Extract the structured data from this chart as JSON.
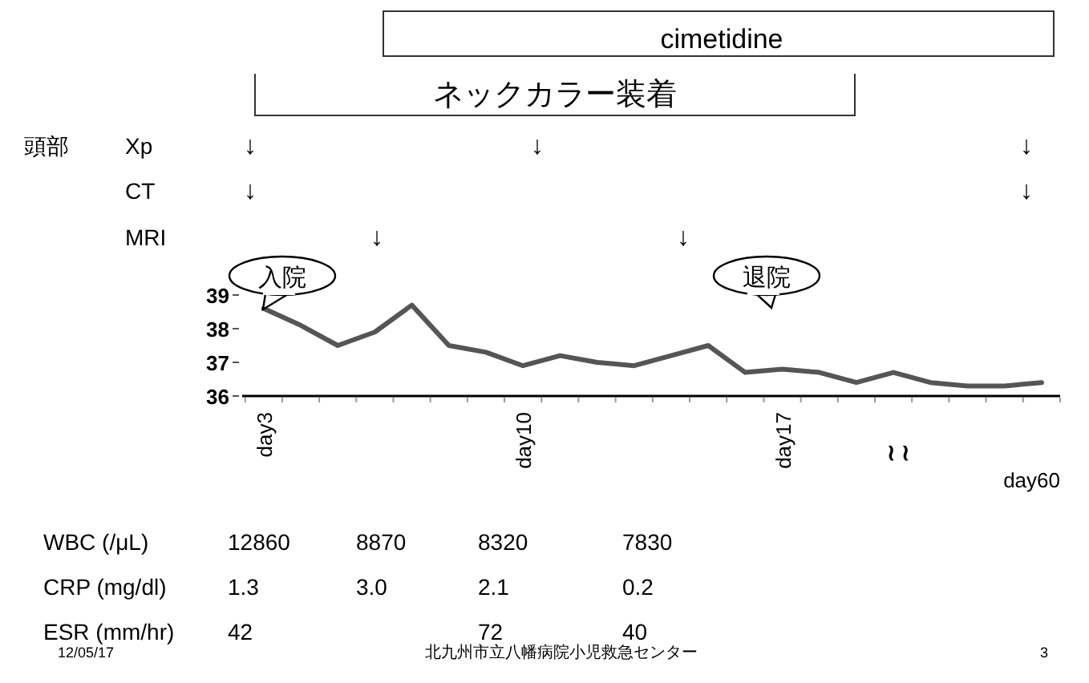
{
  "chart_data": {
    "type": "line",
    "categories": [
      "day3",
      null,
      null,
      null,
      null,
      null,
      null,
      "day10",
      null,
      null,
      null,
      null,
      null,
      null,
      "day17",
      null,
      null,
      null,
      null,
      null,
      null,
      null
    ],
    "series": [
      {
        "color": "#555555",
        "values": [
          38.6,
          38.1,
          37.5,
          37.9,
          38.7,
          37.5,
          37.3,
          36.9,
          37.2,
          37.0,
          36.9,
          37.2,
          37.5,
          36.7,
          36.8,
          36.7,
          36.4,
          36.7,
          36.4,
          36.3,
          36.3,
          36.4
        ]
      }
    ],
    "ylim": [
      36,
      39
    ],
    "yticks": [
      36,
      37,
      38,
      39
    ],
    "grid": false,
    "marker": "none",
    "annotations": [
      "cimetidine",
      "ネックカラー装着",
      "頭部",
      "Xp",
      "CT",
      "MRI",
      "↓",
      "↓",
      "↓",
      "↓",
      "↓",
      "↓",
      "↓",
      "入院",
      "退院",
      "≀ ≀",
      "day60",
      "WBC (/μL)",
      "12860",
      "8870",
      "8320",
      "7830",
      "CRP (mg/dl)",
      "1.3",
      "3.0",
      "2.1",
      "0.2",
      "ESR (mm/hr)",
      "42",
      "72",
      "40",
      "12/05/17",
      "北九州市立八幡病院小児救急センター",
      "3"
    ]
  }
}
